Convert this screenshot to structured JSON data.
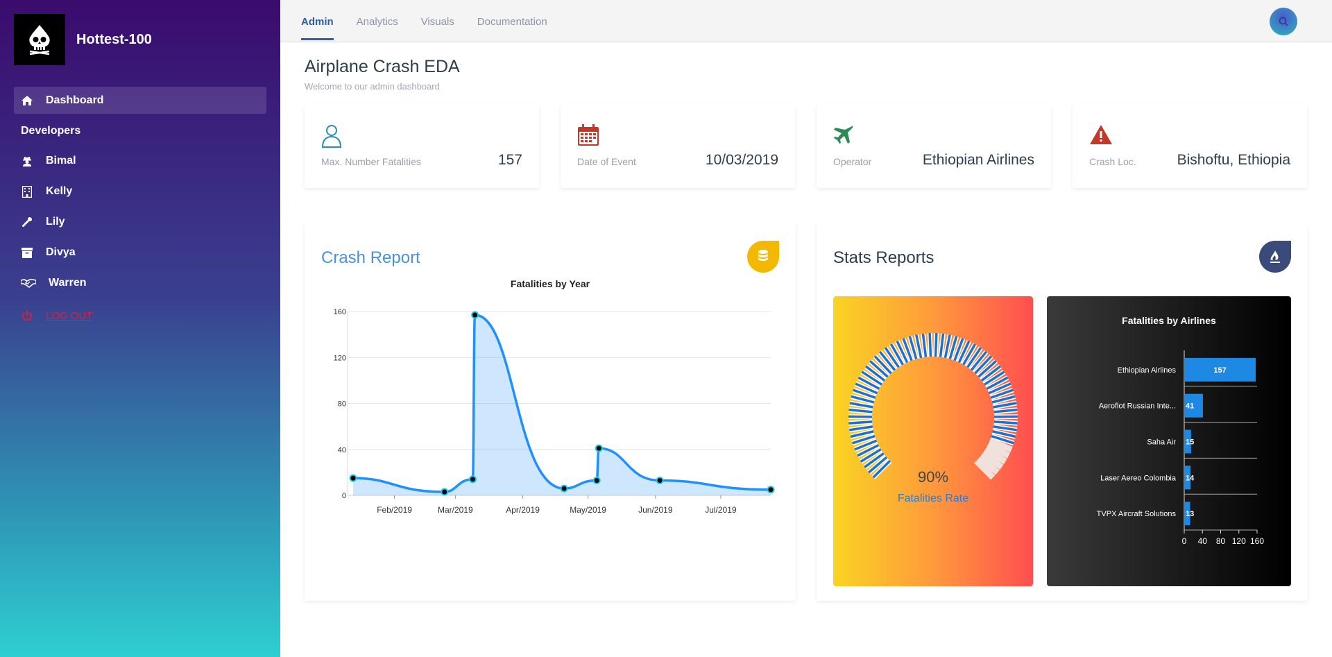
{
  "brand": {
    "name": "Hottest-100",
    "logo_icon": "skull-icon"
  },
  "sidebar": {
    "dashboard_label": "Dashboard",
    "section_label": "Developers",
    "developers": [
      {
        "label": "Bimal",
        "icon": "user-secret-icon"
      },
      {
        "label": "Kelly",
        "icon": "building-icon"
      },
      {
        "label": "Lily",
        "icon": "wrench-icon"
      },
      {
        "label": "Divya",
        "icon": "archive-icon"
      },
      {
        "label": "Warren",
        "icon": "handshake-icon"
      }
    ],
    "logout_label": "LOG OUT"
  },
  "topbar": {
    "tabs": [
      {
        "label": "Admin",
        "active": true
      },
      {
        "label": "Analytics",
        "active": false
      },
      {
        "label": "Visuals",
        "active": false
      },
      {
        "label": "Documentation",
        "active": false
      }
    ]
  },
  "page": {
    "title": "Airplane Crash EDA",
    "subtitle": "Welcome to our admin dashboard"
  },
  "stats": [
    {
      "label": "Max. Number Fatalities",
      "value": "157",
      "icon": "user-icon",
      "color": "#2a8db0"
    },
    {
      "label": "Date of Event",
      "value": "10/03/2019",
      "icon": "calendar-icon",
      "color": "#c0392b"
    },
    {
      "label": "Operator",
      "value": "Ethiopian Airlines",
      "icon": "plane-icon",
      "color": "#2e8b57"
    },
    {
      "label": "Crash Loc.",
      "value": "Bishoftu, Ethiopia",
      "icon": "warning-icon",
      "color": "#c0392b"
    }
  ],
  "crash_report": {
    "title": "Crash Report",
    "badge_icon": "database-icon",
    "badge_color": "#f5b800"
  },
  "stats_reports": {
    "title": "Stats Reports",
    "badge_icon": "fire-icon",
    "badge_color": "#3a4a7a"
  },
  "gauge": {
    "value_label": "90%",
    "value": 0.9,
    "caption": "Fatalities Rate"
  },
  "chart_data": [
    {
      "type": "area",
      "title": "Fatalities by Year",
      "x_tick_labels": [
        "Feb/2019",
        "Mar/2019",
        "Apr/2019",
        "May/2019",
        "Jun/2019",
        "Jul/2019"
      ],
      "x": [
        "2019-01-13",
        "2019-02-24",
        "2019-03-09",
        "2019-03-10",
        "2019-04-20",
        "2019-05-05",
        "2019-05-06",
        "2019-06-03",
        "2019-07-24"
      ],
      "y": [
        15,
        3,
        14,
        157,
        6,
        13,
        41,
        13,
        5
      ],
      "yticks": [
        0,
        40,
        80,
        120,
        160
      ],
      "ylim": [
        0,
        160
      ],
      "color": "#1e90ff"
    },
    {
      "type": "bar",
      "orientation": "horizontal",
      "title": "Fatalities by Airlines",
      "categories": [
        "Ethiopian Airlines",
        "Aeroflot Russian Inte...",
        "Saha Air",
        "Laser Aereo Colombia",
        "TVPX Aircraft Solutions"
      ],
      "values": [
        157,
        41,
        15,
        14,
        13
      ],
      "xticks": [
        0,
        40,
        80,
        120,
        160
      ],
      "xlim": [
        0,
        160
      ],
      "color": "#1e88e5"
    }
  ]
}
